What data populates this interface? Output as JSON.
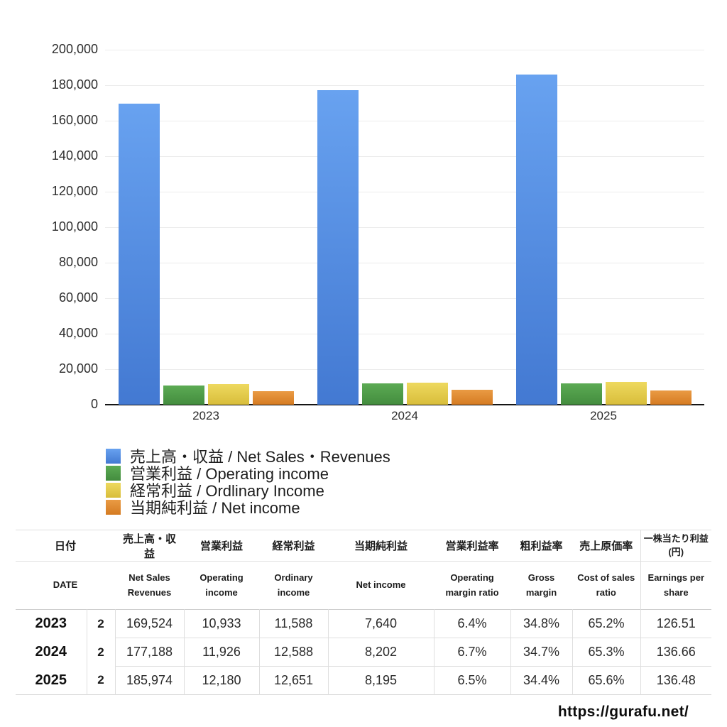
{
  "chart_data": {
    "type": "bar",
    "title": "",
    "xlabel": "",
    "ylabel": "",
    "categories": [
      "2023",
      "2024",
      "2025"
    ],
    "series": [
      {
        "key": "net-sales-revenues",
        "name": "売上高・収益 / Net Sales・Revenues",
        "values": [
          169524,
          177188,
          185974
        ],
        "color": "#4a86dc",
        "color_top": "#68a2f0",
        "color_bottom": "#4379d2"
      },
      {
        "key": "operating-income",
        "name": "営業利益 / Operating income",
        "values": [
          10933,
          11926,
          12180
        ],
        "color": "#4f9a48",
        "color_top": "#5cab54",
        "color_bottom": "#438c3e"
      },
      {
        "key": "ordinary-income",
        "name": "経常利益 / Ordlinary Income",
        "values": [
          11588,
          12588,
          12651
        ],
        "color": "#e3c944",
        "color_top": "#eed95f",
        "color_bottom": "#d8bd3a"
      },
      {
        "key": "net-income",
        "name": "当期純利益 / Net income",
        "values": [
          7640,
          8202,
          8195
        ],
        "color": "#e08a30",
        "color_top": "#ea9b44",
        "color_bottom": "#d57b22"
      }
    ],
    "ylim": [
      0,
      200000
    ],
    "ytick_step": 20000,
    "ytick_labels": [
      "0",
      "20,000",
      "40,000",
      "60,000",
      "80,000",
      "100,000",
      "120,000",
      "140,000",
      "160,000",
      "180,000",
      "200,000"
    ],
    "grid": true,
    "legend_position": "bottom-left"
  },
  "table": {
    "date_header_jp": "日付",
    "date_header_en": "DATE",
    "headers_jp": [
      "売上高・収益",
      "営業利益",
      "経常利益",
      "当期純利益",
      "営業利益率",
      "粗利益率",
      "売上原価率",
      "一株当たり利益\n(円)"
    ],
    "headers_en": [
      "Net Sales Revenues",
      "Operating income",
      "Ordinary income",
      "Net income",
      "Operating margin ratio",
      "Gross margin",
      "Cost of sales ratio",
      "Earnings per share"
    ],
    "rows": [
      {
        "year": "2023",
        "month": "2",
        "values": [
          "169,524",
          "10,933",
          "11,588",
          "7,640",
          "6.4%",
          "34.8%",
          "65.2%",
          "126.51"
        ]
      },
      {
        "year": "2024",
        "month": "2",
        "values": [
          "177,188",
          "11,926",
          "12,588",
          "8,202",
          "6.7%",
          "34.7%",
          "65.3%",
          "136.66"
        ]
      },
      {
        "year": "2025",
        "month": "2",
        "values": [
          "185,974",
          "12,180",
          "12,651",
          "8,195",
          "6.5%",
          "34.4%",
          "65.6%",
          "136.48"
        ]
      }
    ]
  },
  "footer": {
    "url": "https://gurafu.net/"
  }
}
